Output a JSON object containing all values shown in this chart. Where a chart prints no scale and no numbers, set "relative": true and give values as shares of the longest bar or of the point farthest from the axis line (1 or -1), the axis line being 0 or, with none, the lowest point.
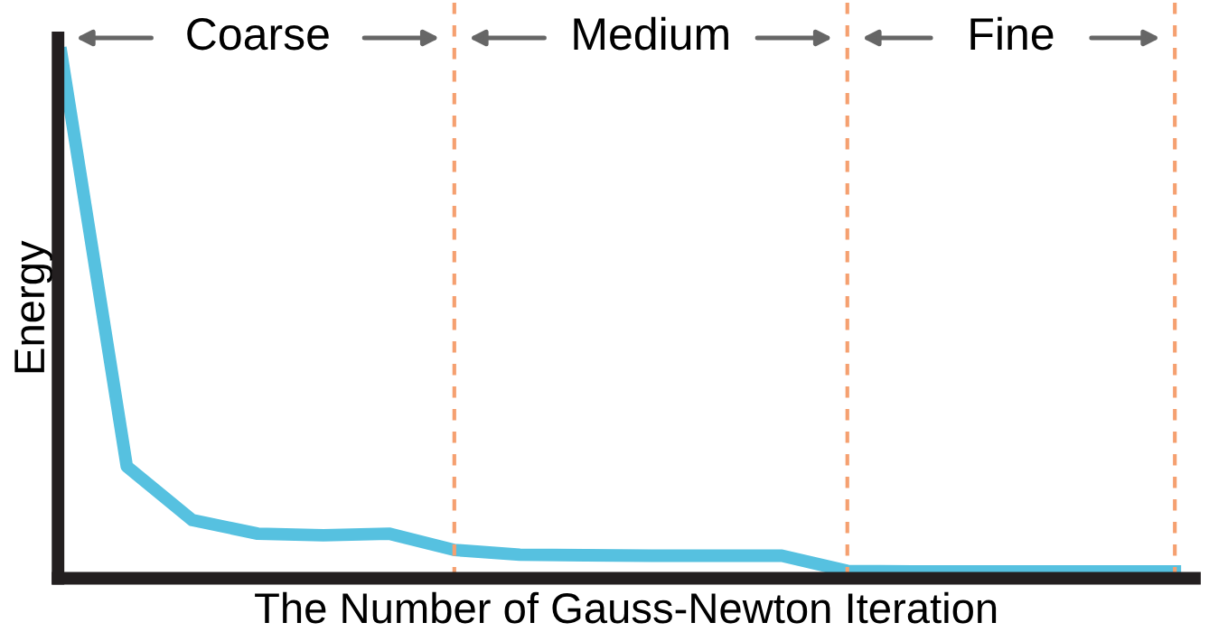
{
  "chart_data": {
    "type": "line",
    "relative": true,
    "xlabel": "The Number of Gauss-Newton Iteration",
    "ylabel": "Energy",
    "categories": [
      null,
      null,
      null,
      null,
      null,
      null,
      null,
      null,
      null,
      null,
      null,
      null,
      null,
      null,
      null,
      null,
      null,
      null
    ],
    "series": [
      {
        "color": "#56c1e0",
        "values": [
          1,
          0.213,
          0.111,
          0.085,
          0.082,
          0.085,
          0.054,
          0.045,
          0.044,
          0.043,
          0.043,
          0.043,
          0.014,
          0.013,
          0.013,
          0.013,
          0.013,
          0.013
        ]
      }
    ],
    "annotations": [
      "Coarse",
      "Medium",
      "Fine"
    ],
    "grid": "x",
    "marker": "none",
    "line_style": "solid"
  }
}
